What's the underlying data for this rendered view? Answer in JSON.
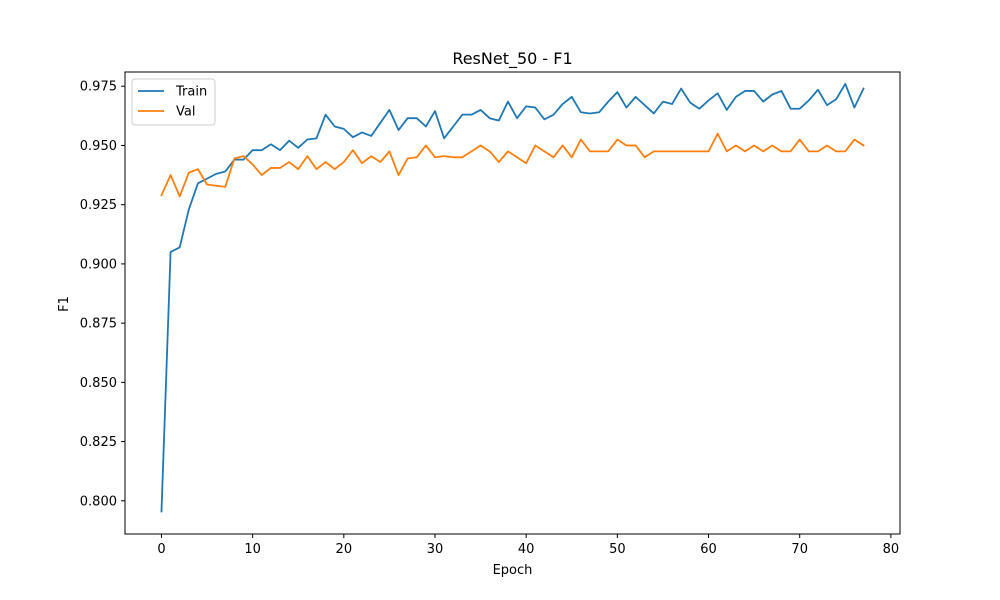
{
  "chart_data": {
    "type": "line",
    "title": "ResNet_50 - F1",
    "xlabel": "Epoch",
    "ylabel": "F1",
    "xlim": [
      -4,
      81
    ],
    "ylim": [
      0.786,
      0.981
    ],
    "xticks": [
      0,
      10,
      20,
      30,
      40,
      50,
      60,
      70,
      80
    ],
    "yticks": [
      0.8,
      0.825,
      0.85,
      0.875,
      0.9,
      0.925,
      0.95,
      0.975
    ],
    "ytick_labels": [
      "0.800",
      "0.825",
      "0.850",
      "0.875",
      "0.900",
      "0.925",
      "0.950",
      "0.975"
    ],
    "grid": false,
    "legend_position": "top-left",
    "series": [
      {
        "name": "Train",
        "color": "#1f77b4",
        "values": [
          0.7955,
          0.905,
          0.907,
          0.923,
          0.934,
          0.936,
          0.938,
          0.939,
          0.944,
          0.944,
          0.948,
          0.948,
          0.9505,
          0.948,
          0.952,
          0.949,
          0.9525,
          0.953,
          0.963,
          0.958,
          0.957,
          0.9535,
          0.9555,
          0.954,
          0.9595,
          0.965,
          0.9565,
          0.9615,
          0.9615,
          0.958,
          0.9645,
          0.953,
          0.958,
          0.963,
          0.963,
          0.965,
          0.9615,
          0.9605,
          0.9685,
          0.9615,
          0.9665,
          0.966,
          0.961,
          0.963,
          0.9675,
          0.9705,
          0.964,
          0.9635,
          0.964,
          0.9685,
          0.9725,
          0.966,
          0.9705,
          0.967,
          0.9635,
          0.9685,
          0.9675,
          0.974,
          0.968,
          0.9655,
          0.969,
          0.972,
          0.965,
          0.9705,
          0.973,
          0.973,
          0.9685,
          0.9715,
          0.973,
          0.9655,
          0.9655,
          0.969,
          0.9735,
          0.967,
          0.9695,
          0.976,
          0.966,
          0.974
        ]
      },
      {
        "name": "Val",
        "color": "#ff7f0e",
        "values": [
          0.929,
          0.9375,
          0.9285,
          0.9385,
          0.94,
          0.9335,
          0.933,
          0.9325,
          0.9445,
          0.9455,
          0.942,
          0.9375,
          0.9405,
          0.9405,
          0.943,
          0.94,
          0.9455,
          0.94,
          0.943,
          0.94,
          0.943,
          0.948,
          0.9425,
          0.9455,
          0.943,
          0.9475,
          0.9375,
          0.9445,
          0.945,
          0.95,
          0.945,
          0.9455,
          0.945,
          0.945,
          0.9475,
          0.95,
          0.9475,
          0.943,
          0.9475,
          0.945,
          0.9425,
          0.95,
          0.9475,
          0.945,
          0.95,
          0.945,
          0.9525,
          0.9475,
          0.9475,
          0.9475,
          0.9525,
          0.95,
          0.95,
          0.945,
          0.9475,
          0.9475,
          0.9475,
          0.9475,
          0.9475,
          0.9475,
          0.9475,
          0.955,
          0.9475,
          0.95,
          0.9475,
          0.95,
          0.9475,
          0.95,
          0.9475,
          0.9475,
          0.9525,
          0.9475,
          0.9475,
          0.95,
          0.9475,
          0.9475,
          0.9525,
          0.95
        ]
      }
    ]
  }
}
